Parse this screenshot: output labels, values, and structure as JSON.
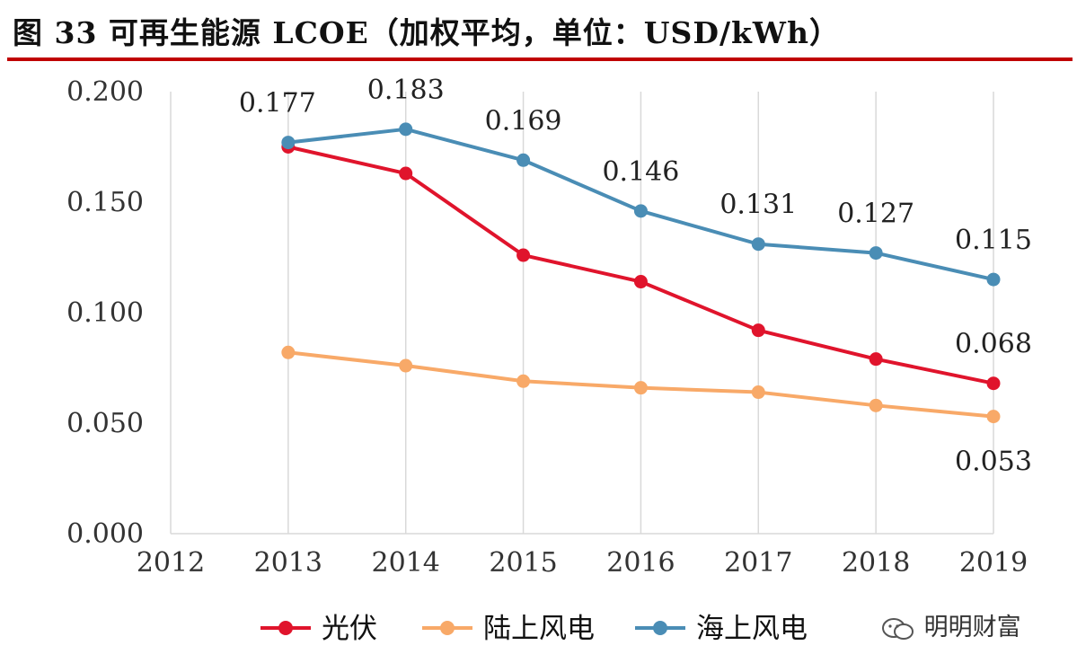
{
  "figure_title": "图 33 可再生能源 LCOE（加权平均，单位：USD/kWh）",
  "watermark": "明明财富",
  "colors": {
    "rule": "#c00000",
    "pv": "#e0142c",
    "onshore": "#f8a968",
    "offshore": "#4a8db5",
    "grid": "#d9d9d9",
    "axis_text": "#333333"
  },
  "chart_data": {
    "type": "line",
    "title": "可再生能源 LCOE（加权平均，单位：USD/kWh）",
    "x": [
      "2012",
      "2013",
      "2014",
      "2015",
      "2016",
      "2017",
      "2018",
      "2019"
    ],
    "ylim": [
      0,
      0.2
    ],
    "y_ticks": [
      "0.000",
      "0.050",
      "0.100",
      "0.150",
      "0.200"
    ],
    "grid": "vertical",
    "legend_position": "bottom",
    "series": [
      {
        "name": "光伏",
        "color_key": "pv",
        "values": [
          null,
          0.175,
          0.163,
          0.126,
          0.114,
          0.092,
          0.079,
          0.068
        ]
      },
      {
        "name": "陆上风电",
        "color_key": "onshore",
        "values": [
          null,
          0.082,
          0.076,
          0.069,
          0.066,
          0.064,
          0.058,
          0.053
        ]
      },
      {
        "name": "海上风电",
        "color_key": "offshore",
        "values": [
          null,
          0.177,
          0.183,
          0.169,
          0.146,
          0.131,
          0.127,
          0.115
        ]
      }
    ],
    "annotations": [
      {
        "series": "海上风电",
        "x": "2013",
        "text": "0.177"
      },
      {
        "series": "海上风电",
        "x": "2014",
        "text": "0.183"
      },
      {
        "series": "海上风电",
        "x": "2015",
        "text": "0.169"
      },
      {
        "series": "海上风电",
        "x": "2016",
        "text": "0.146"
      },
      {
        "series": "海上风电",
        "x": "2017",
        "text": "0.131"
      },
      {
        "series": "海上风电",
        "x": "2018",
        "text": "0.127"
      },
      {
        "series": "海上风电",
        "x": "2019",
        "text": "0.115"
      },
      {
        "series": "光伏",
        "x": "2019",
        "text": "0.068"
      },
      {
        "series": "陆上风电",
        "x": "2019",
        "text": "0.053"
      }
    ]
  }
}
